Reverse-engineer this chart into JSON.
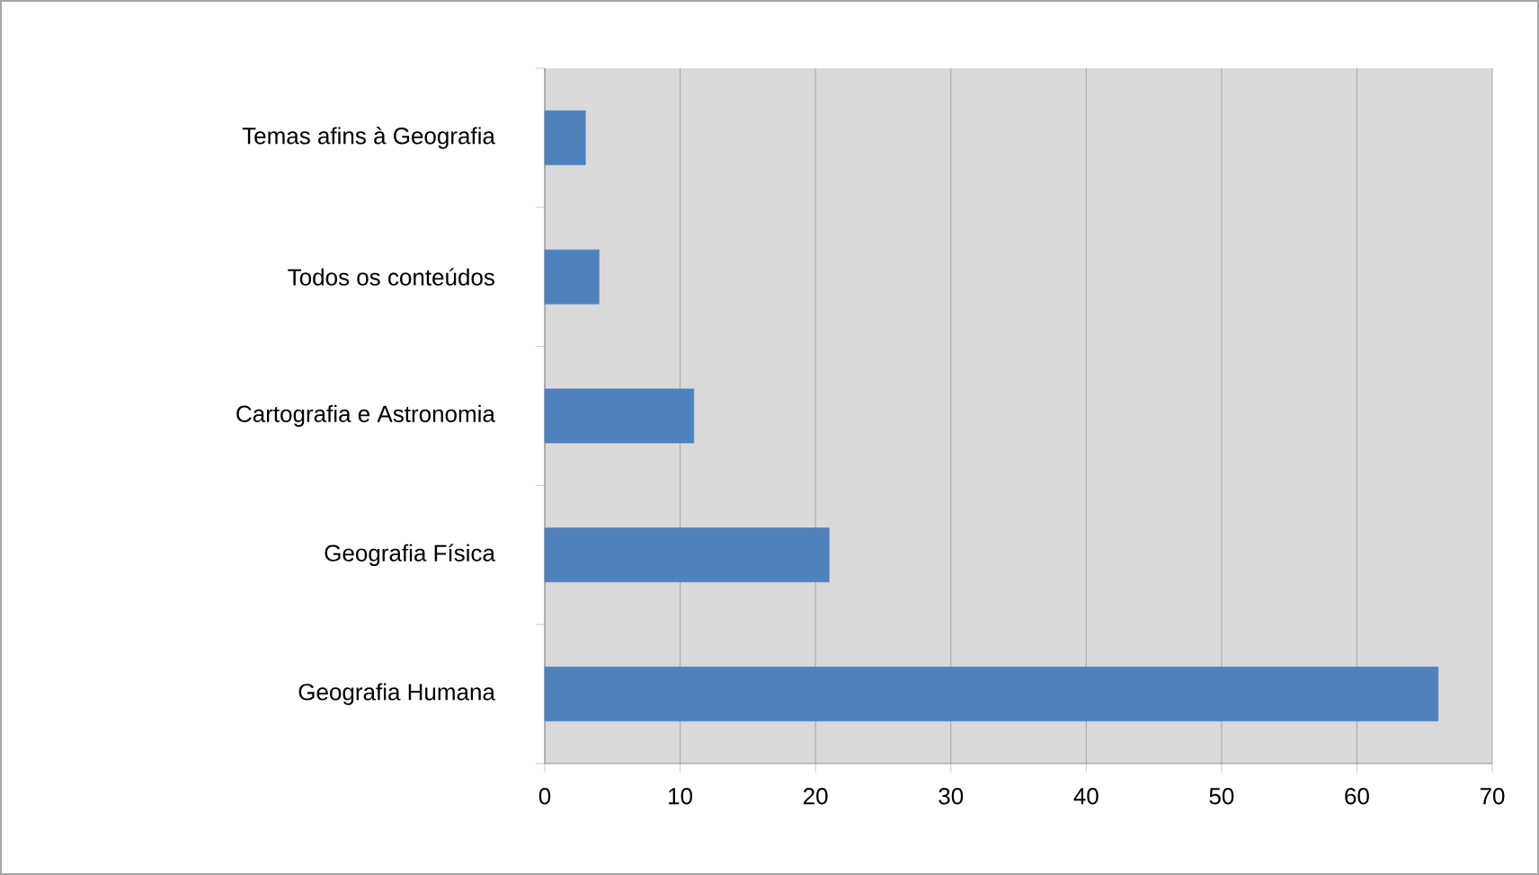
{
  "chart_data": {
    "type": "bar",
    "orientation": "horizontal",
    "categories": [
      "Temas afins à Geografia",
      "Todos os conteúdos",
      "Cartografia e Astronomia",
      "Geografia Física",
      "Geografia Humana"
    ],
    "values": [
      3,
      4,
      11,
      21,
      66
    ],
    "color": "#4f81bd",
    "xlim": [
      0,
      70
    ],
    "xticks": [
      0,
      10,
      20,
      30,
      40,
      50,
      60,
      70
    ],
    "grid": "x"
  }
}
